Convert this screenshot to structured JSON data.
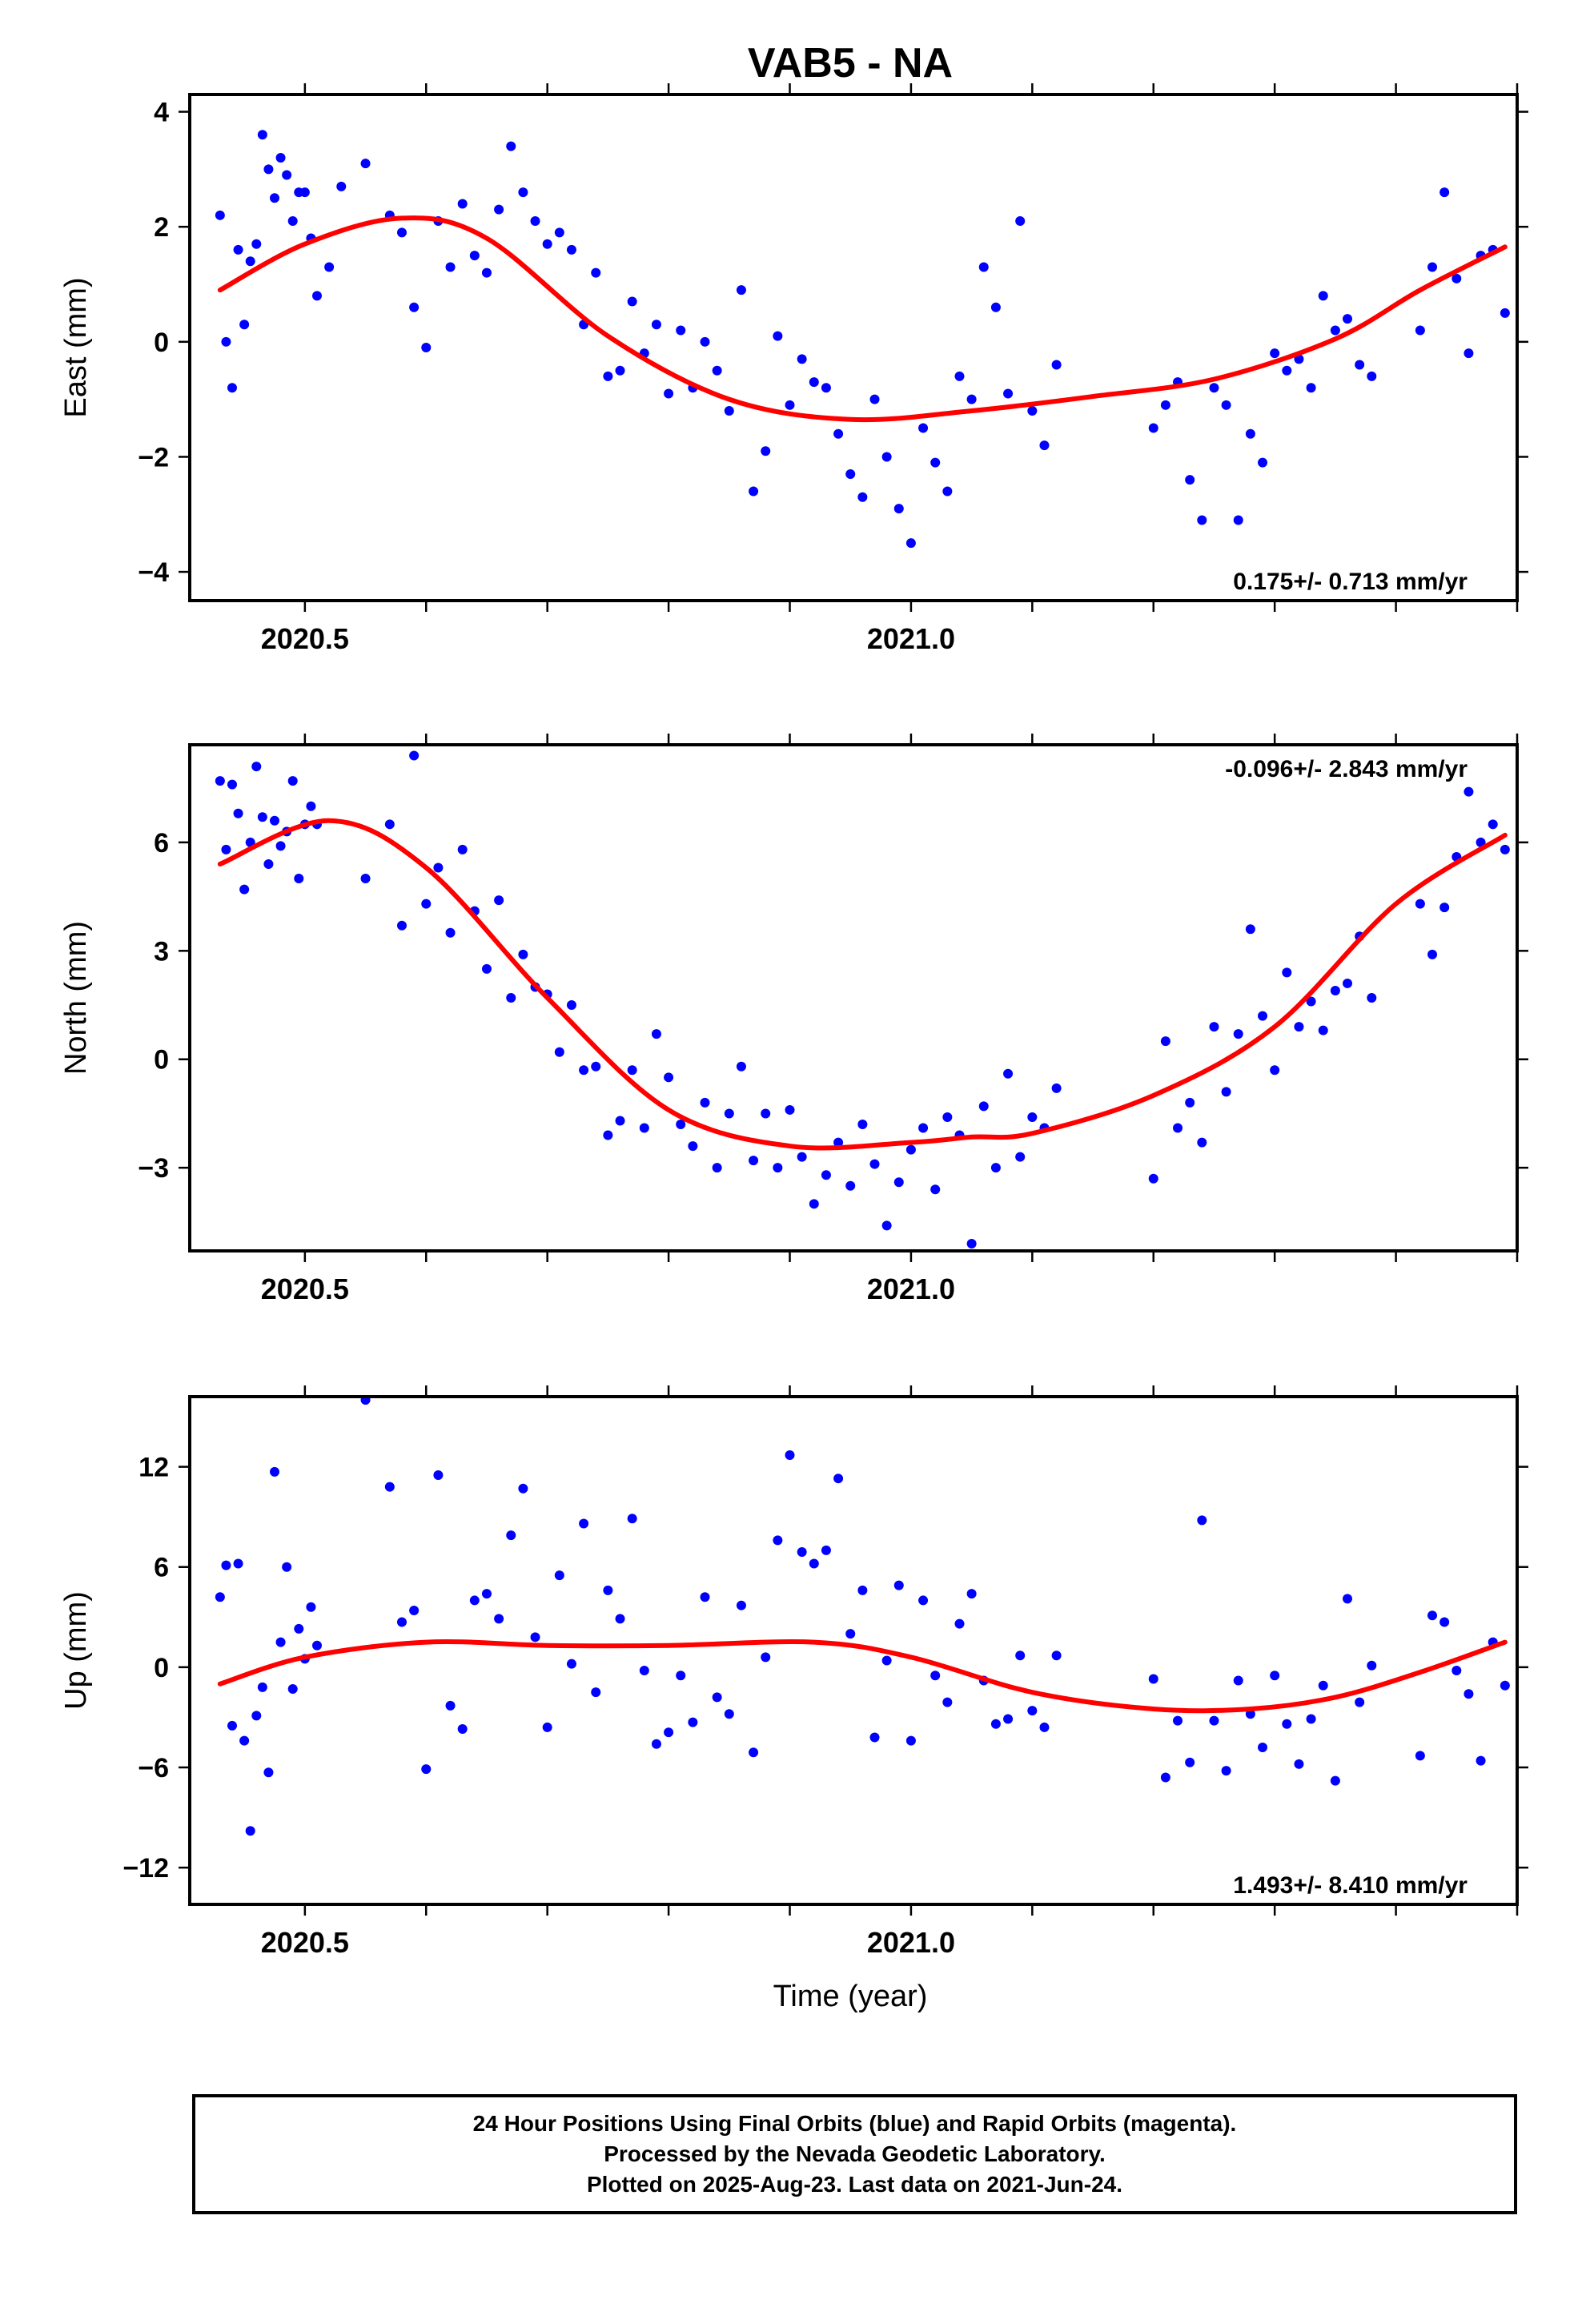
{
  "title": "VAB5 - NA",
  "xlabel": "Time (year)",
  "footer": {
    "line1": "24 Hour Positions Using Final Orbits (blue) and Rapid Orbits (magenta).",
    "line2": "Processed by the Nevada Geodetic Laboratory.",
    "line3": "Plotted on 2025-Aug-23. Last data on 2021-Jun-24."
  },
  "colors": {
    "final_orbits": "#0000ff",
    "fit": "#ff0000",
    "frame": "#000000"
  },
  "chart_data": [
    {
      "type": "scatter",
      "ylabel": "East (mm)",
      "xlim": [
        2020.405,
        2021.5
      ],
      "ylim": [
        -4.5,
        4.3
      ],
      "xticks": [
        2020.5,
        2021.0
      ],
      "yticks": [
        -4,
        -2,
        0,
        2,
        4
      ],
      "ytick_labels": [
        "−4",
        "−2",
        "0",
        "2",
        "4"
      ],
      "rate_label": "0.175+/- 0.713 mm/yr",
      "rate_position": "bottom-right",
      "series": [
        {
          "kind": "points",
          "x": [
            2020.43,
            2020.435,
            2020.44,
            2020.445,
            2020.45,
            2020.455,
            2020.46,
            2020.465,
            2020.47,
            2020.475,
            2020.48,
            2020.485,
            2020.49,
            2020.495,
            2020.5,
            2020.505,
            2020.51,
            2020.52,
            2020.53,
            2020.55,
            2020.57,
            2020.58,
            2020.59,
            2020.6,
            2020.61,
            2020.62,
            2020.63,
            2020.64,
            2020.65,
            2020.66,
            2020.67,
            2020.68,
            2020.69,
            2020.7,
            2020.71,
            2020.72,
            2020.73,
            2020.74,
            2020.75,
            2020.76,
            2020.77,
            2020.78,
            2020.79,
            2020.8,
            2020.81,
            2020.82,
            2020.83,
            2020.84,
            2020.85,
            2020.86,
            2020.87,
            2020.88,
            2020.89,
            2020.9,
            2020.91,
            2020.92,
            2020.93,
            2020.94,
            2020.95,
            2020.96,
            2020.97,
            2020.98,
            2020.99,
            2021.0,
            2021.01,
            2021.02,
            2021.03,
            2021.04,
            2021.05,
            2021.06,
            2021.07,
            2021.08,
            2021.09,
            2021.1,
            2021.11,
            2021.12,
            2021.2,
            2021.21,
            2021.22,
            2021.23,
            2021.24,
            2021.25,
            2021.26,
            2021.27,
            2021.28,
            2021.29,
            2021.3,
            2021.31,
            2021.32,
            2021.33,
            2021.34,
            2021.35,
            2021.36,
            2021.37,
            2021.38,
            2021.42,
            2021.43,
            2021.44,
            2021.45,
            2021.46,
            2021.47,
            2021.48,
            2021.49
          ],
          "y": [
            2.2,
            0.0,
            -0.8,
            1.6,
            0.3,
            1.4,
            1.7,
            3.6,
            3.0,
            2.5,
            3.2,
            2.9,
            2.1,
            2.6,
            2.6,
            1.8,
            0.8,
            1.3,
            2.7,
            3.1,
            2.2,
            1.9,
            0.6,
            -0.1,
            2.1,
            1.3,
            2.4,
            1.5,
            1.2,
            2.3,
            3.4,
            2.6,
            2.1,
            1.7,
            1.9,
            1.6,
            0.3,
            1.2,
            -0.6,
            -0.5,
            0.7,
            -0.2,
            0.3,
            -0.9,
            0.2,
            -0.8,
            0.0,
            -0.5,
            -1.2,
            0.9,
            -2.6,
            -1.9,
            0.1,
            -1.1,
            -0.3,
            -0.7,
            -0.8,
            -1.6,
            -2.3,
            -2.7,
            -1.0,
            -2.0,
            -2.9,
            -3.5,
            -1.5,
            -2.1,
            -2.6,
            -0.6,
            -1.0,
            1.3,
            0.6,
            -0.9,
            2.1,
            -1.2,
            -1.8,
            -0.4,
            -1.5,
            -1.1,
            -0.7,
            -2.4,
            -3.1,
            -0.8,
            -1.1,
            -3.1,
            -1.6,
            -2.1,
            -0.2,
            -0.5,
            -0.3,
            -0.8,
            0.8,
            0.2,
            0.4,
            -0.4,
            -0.6,
            0.2,
            1.3,
            2.6,
            1.1,
            -0.2,
            1.5,
            1.6,
            0.5
          ]
        },
        {
          "kind": "fit",
          "x": [
            2020.43,
            2020.5,
            2020.58,
            2020.65,
            2020.75,
            2020.85,
            2020.95,
            2021.05,
            2021.15,
            2021.25,
            2021.35,
            2021.42,
            2021.49
          ],
          "y": [
            0.9,
            1.7,
            2.15,
            1.8,
            0.1,
            -1.0,
            -1.35,
            -1.2,
            -0.95,
            -0.65,
            0.05,
            0.9,
            1.65
          ]
        }
      ]
    },
    {
      "type": "scatter",
      "ylabel": "North (mm)",
      "xlim": [
        2020.405,
        2021.5
      ],
      "ylim": [
        -5.3,
        8.7
      ],
      "xticks": [
        2020.5,
        2021.0
      ],
      "yticks": [
        -3,
        0,
        3,
        6
      ],
      "ytick_labels": [
        "−3",
        "0",
        "3",
        "6"
      ],
      "rate_label": "-0.096+/- 2.843 mm/yr",
      "rate_position": "top-right",
      "series": [
        {
          "kind": "points",
          "x": [
            2020.43,
            2020.435,
            2020.44,
            2020.445,
            2020.45,
            2020.455,
            2020.46,
            2020.465,
            2020.47,
            2020.475,
            2020.48,
            2020.485,
            2020.49,
            2020.495,
            2020.5,
            2020.505,
            2020.51,
            2020.55,
            2020.57,
            2020.58,
            2020.59,
            2020.6,
            2020.61,
            2020.62,
            2020.63,
            2020.64,
            2020.65,
            2020.66,
            2020.67,
            2020.68,
            2020.69,
            2020.7,
            2020.71,
            2020.72,
            2020.73,
            2020.74,
            2020.75,
            2020.76,
            2020.77,
            2020.78,
            2020.79,
            2020.8,
            2020.81,
            2020.82,
            2020.83,
            2020.84,
            2020.85,
            2020.86,
            2020.87,
            2020.88,
            2020.89,
            2020.9,
            2020.91,
            2020.92,
            2020.93,
            2020.94,
            2020.95,
            2020.96,
            2020.97,
            2020.98,
            2020.99,
            2021.0,
            2021.01,
            2021.02,
            2021.03,
            2021.04,
            2021.05,
            2021.06,
            2021.07,
            2021.08,
            2021.09,
            2021.1,
            2021.11,
            2021.12,
            2021.2,
            2021.21,
            2021.22,
            2021.23,
            2021.24,
            2021.25,
            2021.26,
            2021.27,
            2021.28,
            2021.29,
            2021.3,
            2021.31,
            2021.32,
            2021.33,
            2021.34,
            2021.35,
            2021.36,
            2021.37,
            2021.38,
            2021.42,
            2021.43,
            2021.44,
            2021.45,
            2021.46,
            2021.47,
            2021.48,
            2021.49
          ],
          "y": [
            7.7,
            5.8,
            7.6,
            6.8,
            4.7,
            6.0,
            8.1,
            6.7,
            5.4,
            6.6,
            5.9,
            6.3,
            7.7,
            5.0,
            6.5,
            7.0,
            6.5,
            5.0,
            6.5,
            3.7,
            8.4,
            4.3,
            5.3,
            3.5,
            5.8,
            4.1,
            2.5,
            4.4,
            1.7,
            2.9,
            2.0,
            1.8,
            0.2,
            1.5,
            -0.3,
            -0.2,
            -2.1,
            -1.7,
            -0.3,
            -1.9,
            0.7,
            -0.5,
            -1.8,
            -2.4,
            -1.2,
            -3.0,
            -1.5,
            -0.2,
            -2.8,
            -1.5,
            -3.0,
            -1.4,
            -2.7,
            -4.0,
            -3.2,
            -2.3,
            -3.5,
            -1.8,
            -2.9,
            -4.6,
            -3.4,
            -2.5,
            -1.9,
            -3.6,
            -1.6,
            -2.1,
            -5.1,
            -1.3,
            -3.0,
            -0.4,
            -2.7,
            -1.6,
            -1.9,
            -0.8,
            -3.3,
            0.5,
            -1.9,
            -1.2,
            -2.3,
            0.9,
            -0.9,
            0.7,
            3.6,
            1.2,
            -0.3,
            2.4,
            0.9,
            1.6,
            0.8,
            1.9,
            2.1,
            3.4,
            1.7,
            4.3,
            2.9,
            4.2,
            5.6,
            7.4,
            6.0,
            6.5,
            5.8
          ]
        },
        {
          "kind": "fit",
          "x": [
            2020.43,
            2020.52,
            2020.6,
            2020.7,
            2020.8,
            2020.9,
            2021.0,
            2021.05,
            2021.1,
            2021.2,
            2021.3,
            2021.4,
            2021.49
          ],
          "y": [
            5.4,
            6.6,
            5.3,
            1.7,
            -1.4,
            -2.4,
            -2.3,
            -2.15,
            -2.05,
            -1.0,
            0.9,
            4.3,
            6.2
          ]
        }
      ]
    },
    {
      "type": "scatter",
      "ylabel": "Up (mm)",
      "xlim": [
        2020.405,
        2021.5
      ],
      "ylim": [
        -14.2,
        16.2
      ],
      "xticks": [
        2020.5,
        2021.0
      ],
      "yticks": [
        -12,
        -6,
        0,
        6,
        12
      ],
      "ytick_labels": [
        "−12",
        "−6",
        "0",
        "6",
        "12"
      ],
      "rate_label": "1.493+/- 8.410 mm/yr",
      "rate_position": "bottom-right",
      "series": [
        {
          "kind": "points",
          "x": [
            2020.43,
            2020.435,
            2020.44,
            2020.445,
            2020.45,
            2020.455,
            2020.46,
            2020.465,
            2020.47,
            2020.475,
            2020.48,
            2020.485,
            2020.49,
            2020.495,
            2020.5,
            2020.505,
            2020.51,
            2020.55,
            2020.57,
            2020.58,
            2020.59,
            2020.6,
            2020.61,
            2020.62,
            2020.63,
            2020.64,
            2020.65,
            2020.66,
            2020.67,
            2020.68,
            2020.69,
            2020.7,
            2020.71,
            2020.72,
            2020.73,
            2020.74,
            2020.75,
            2020.76,
            2020.77,
            2020.78,
            2020.79,
            2020.8,
            2020.81,
            2020.82,
            2020.83,
            2020.84,
            2020.85,
            2020.86,
            2020.87,
            2020.88,
            2020.89,
            2020.9,
            2020.91,
            2020.92,
            2020.93,
            2020.94,
            2020.95,
            2020.96,
            2020.97,
            2020.98,
            2020.99,
            2021.0,
            2021.01,
            2021.02,
            2021.03,
            2021.04,
            2021.05,
            2021.06,
            2021.07,
            2021.08,
            2021.09,
            2021.1,
            2021.11,
            2021.12,
            2021.2,
            2021.21,
            2021.22,
            2021.23,
            2021.24,
            2021.25,
            2021.26,
            2021.27,
            2021.28,
            2021.29,
            2021.3,
            2021.31,
            2021.32,
            2021.33,
            2021.34,
            2021.35,
            2021.36,
            2021.37,
            2021.38,
            2021.42,
            2021.43,
            2021.44,
            2021.45,
            2021.46,
            2021.47,
            2021.48,
            2021.49
          ],
          "y": [
            4.2,
            6.1,
            -3.5,
            6.2,
            -4.4,
            -9.8,
            -2.9,
            -1.2,
            -6.3,
            11.7,
            1.5,
            6.0,
            -1.3,
            2.3,
            0.5,
            3.6,
            1.3,
            16.0,
            10.8,
            2.7,
            3.4,
            -6.1,
            11.5,
            -2.3,
            -3.7,
            4.0,
            4.4,
            2.9,
            7.9,
            10.7,
            1.8,
            -3.6,
            5.5,
            0.2,
            8.6,
            -1.5,
            4.6,
            2.9,
            8.9,
            -0.2,
            -4.6,
            -3.9,
            -0.5,
            -3.3,
            4.2,
            -1.8,
            -2.8,
            3.7,
            -5.1,
            0.6,
            7.6,
            12.7,
            6.9,
            6.2,
            7.0,
            11.3,
            2.0,
            4.6,
            -4.2,
            0.4,
            4.9,
            -4.4,
            4.0,
            -0.5,
            -2.1,
            2.6,
            4.4,
            -0.8,
            -3.4,
            -3.1,
            0.7,
            -2.6,
            -3.6,
            0.7,
            -0.7,
            -6.6,
            -3.2,
            -5.7,
            8.8,
            -3.2,
            -6.2,
            -0.8,
            -2.8,
            -4.8,
            -0.5,
            -3.4,
            -5.8,
            -3.1,
            -1.1,
            -6.8,
            4.1,
            -2.1,
            0.1,
            -5.3,
            3.1,
            2.7,
            -0.2,
            -1.6,
            -5.6,
            1.5,
            -1.1
          ]
        },
        {
          "kind": "fit",
          "x": [
            2020.43,
            2020.5,
            2020.6,
            2020.7,
            2020.8,
            2020.92,
            2021.0,
            2021.1,
            2021.2,
            2021.28,
            2021.35,
            2021.42,
            2021.49
          ],
          "y": [
            -1.0,
            0.6,
            1.5,
            1.3,
            1.3,
            1.5,
            0.6,
            -1.5,
            -2.5,
            -2.5,
            -1.8,
            -0.3,
            1.5
          ]
        }
      ]
    }
  ]
}
